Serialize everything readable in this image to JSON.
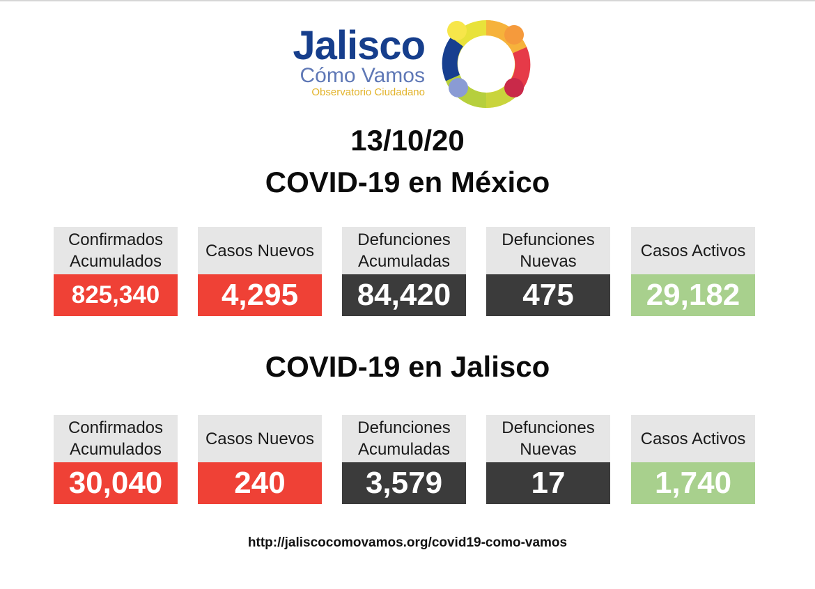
{
  "colors": {
    "red": "#ef4136",
    "dark": "#3b3b3b",
    "green": "#a8d08d",
    "label_bg": "#e6e6e6",
    "logo_blue": "#163e8c"
  },
  "logo": {
    "title": "Jalisco",
    "subtitle": "Cómo Vamos",
    "tagline": "Observatorio Ciudadano",
    "icon": "ring-logo-icon"
  },
  "date": "13/10/20",
  "mexico": {
    "title": "COVID-19 en México",
    "cards": [
      {
        "label": "Confirmados\nAcumulados",
        "value": "825,340"
      },
      {
        "label": "Casos Nuevos",
        "value": "4,295"
      },
      {
        "label": "Defunciones\nAcumuladas",
        "value": "84,420"
      },
      {
        "label": "Defunciones\nNuevas",
        "value": "475"
      },
      {
        "label": "Casos Activos",
        "value": "29,182"
      }
    ]
  },
  "jalisco": {
    "title": "COVID-19 en Jalisco",
    "cards": [
      {
        "label": "Confirmados\nAcumulados",
        "value": "30,040"
      },
      {
        "label": "Casos Nuevos",
        "value": "240"
      },
      {
        "label": "Defunciones\nAcumuladas",
        "value": "3,579"
      },
      {
        "label": "Defunciones\nNuevas",
        "value": "17"
      },
      {
        "label": "Casos Activos",
        "value": "1,740"
      }
    ]
  },
  "url": "http://jaliscocomovamos.org/covid19-como-vamos"
}
